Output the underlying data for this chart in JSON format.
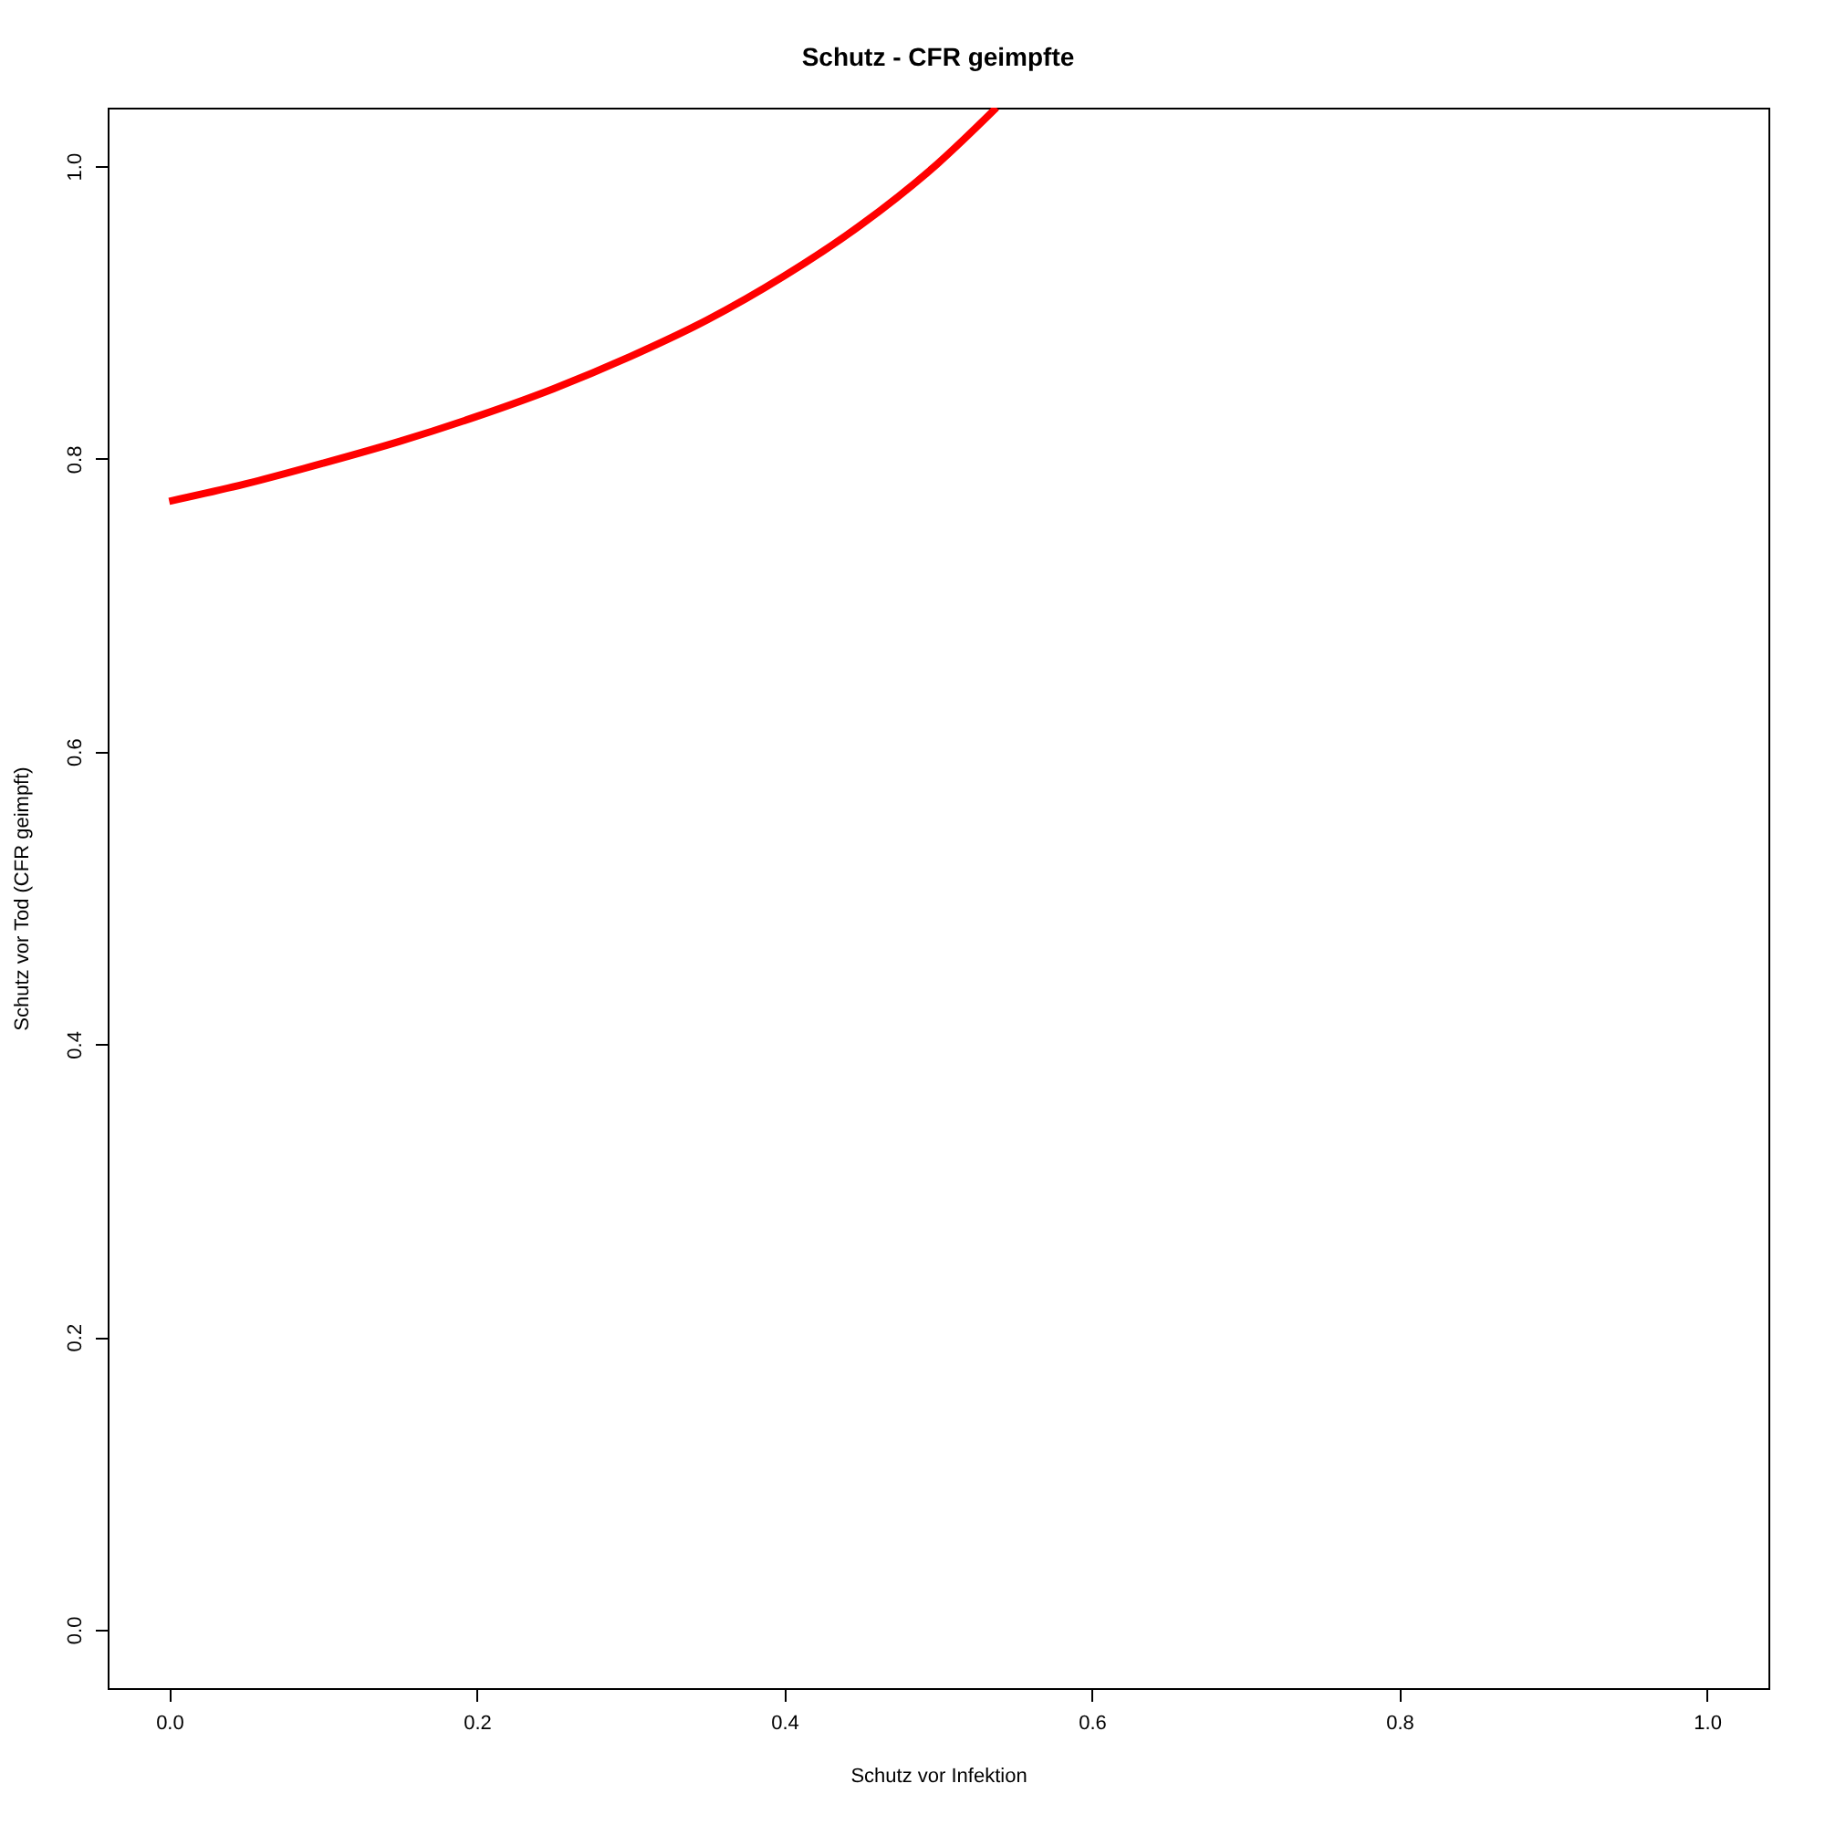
{
  "chart_data": {
    "type": "line",
    "title": "Schutz - CFR geimpfte",
    "xlabel": "Schutz vor Infektion",
    "ylabel": "Schutz vor Tod (CFR geimpft)",
    "x": [
      0,
      0.05,
      0.1,
      0.15,
      0.2,
      0.25,
      0.3,
      0.35,
      0.4,
      0.45,
      0.5,
      0.538
    ],
    "series": [
      {
        "color": "#ff0000",
        "values": [
          0.771,
          0.783,
          0.797,
          0.812,
          0.829,
          0.848,
          0.87,
          0.895,
          0.925,
          0.96,
          1.002,
          1.04
        ]
      }
    ],
    "xlim": [
      -0.04,
      1.04
    ],
    "ylim": [
      -0.04,
      1.04
    ],
    "xticks": [
      {
        "value": 0,
        "label": "0.0"
      },
      0.2,
      0.4,
      0.6,
      0.8,
      {
        "value": 1,
        "label": "1.0"
      }
    ],
    "yticks": [
      {
        "value": 0,
        "label": "0.0"
      },
      0.2,
      0.4,
      0.6,
      0.8,
      {
        "value": 1,
        "label": "1.0"
      }
    ],
    "grid": false,
    "marker": "none",
    "line_style": "solid"
  }
}
